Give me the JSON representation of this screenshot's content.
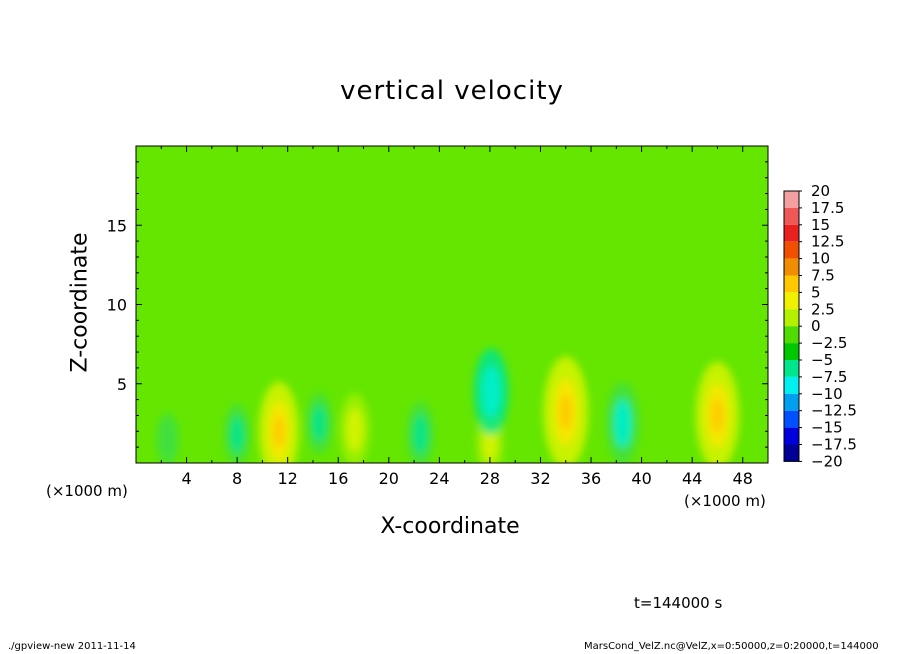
{
  "chart_data": {
    "type": "heatmap",
    "title": "vertical velocity",
    "xlabel": "X-coordinate",
    "ylabel": "Z-coordinate",
    "x_unit_left": "(×1000 m)",
    "x_unit_right": "(×1000 m)",
    "xlim": [
      0,
      50
    ],
    "ylim": [
      0,
      20
    ],
    "x_ticks": [
      "4",
      "8",
      "12",
      "16",
      "20",
      "24",
      "28",
      "32",
      "36",
      "40",
      "44",
      "48"
    ],
    "y_ticks": [
      "5",
      "10",
      "15"
    ],
    "colorbar": {
      "levels": [
        "20",
        "17.5",
        "15",
        "12.5",
        "10",
        "7.5",
        "5",
        "2.5",
        "0",
        "−2.5",
        "−5",
        "−7.5",
        "−10",
        "−12.5",
        "−15",
        "−17.5",
        "−20"
      ],
      "colors": [
        "#f4a0a0",
        "#f05858",
        "#e82020",
        "#f05000",
        "#f28c00",
        "#ffc800",
        "#f0f000",
        "#b4f000",
        "#50dc00",
        "#00c800",
        "#00e68c",
        "#00f0f0",
        "#00a0f0",
        "#0050ff",
        "#0000dc",
        "#000096",
        "#6400aa"
      ]
    },
    "features": [
      {
        "x": 11.3,
        "z": 2.0,
        "w": 7.5
      },
      {
        "x": 17.3,
        "z": 2.1,
        "w": 4.5
      },
      {
        "x": 28.0,
        "z": 1.3,
        "w": 3.5
      },
      {
        "x": 34.0,
        "z": 3.2,
        "w": 9.0
      },
      {
        "x": 46.0,
        "z": 3.0,
        "w": 8.5
      },
      {
        "x": 8.0,
        "z": 1.8,
        "w": -3.0
      },
      {
        "x": 14.5,
        "z": 2.5,
        "w": -3.0
      },
      {
        "x": 22.5,
        "z": 1.8,
        "w": -3.5
      },
      {
        "x": 28.1,
        "z": 4.5,
        "w": -6.0
      },
      {
        "x": 38.5,
        "z": 2.5,
        "w": -5.5
      },
      {
        "x": 2.5,
        "z": 1.5,
        "w": -2.0
      }
    ],
    "grid": false,
    "legend": "colorbar-right"
  },
  "time_label": "t=144000 s",
  "footer": {
    "left": "./gpview-new  2011-11-14",
    "right": "MarsCond_VelZ.nc@VelZ,x=0:50000,z=0:20000,t=144000"
  }
}
